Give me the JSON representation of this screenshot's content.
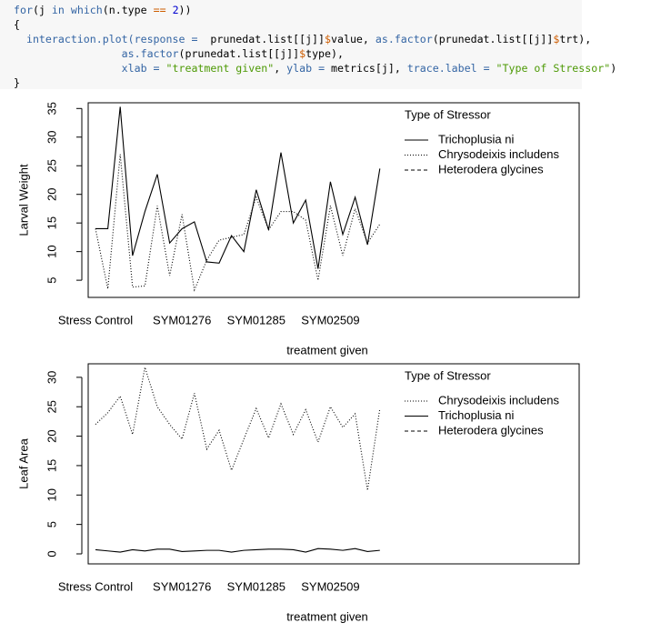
{
  "code": [
    [
      {
        "text": "for",
        "color": "#3465a4"
      },
      {
        "text": "(j ",
        "color": "#000000"
      },
      {
        "text": "in",
        "color": "#3465a4"
      },
      {
        "text": " ",
        "color": "#000000"
      },
      {
        "text": "which",
        "color": "#3465a4"
      },
      {
        "text": "(n.type ",
        "color": "#000000"
      },
      {
        "text": "==",
        "color": "#ce5c00"
      },
      {
        "text": " ",
        "color": "#000000"
      },
      {
        "text": "2",
        "color": "#0000cf"
      },
      {
        "text": "))",
        "color": "#000000"
      }
    ],
    [
      {
        "text": "{",
        "color": "#000000"
      }
    ],
    [
      {
        "text": "  interaction.plot(response =",
        "color": "#3465a4"
      },
      {
        "text": "  prunedat.list[[j]]",
        "color": "#000000"
      },
      {
        "text": "$",
        "color": "#ce5c00"
      },
      {
        "text": "value, ",
        "color": "#000000"
      },
      {
        "text": "as.factor",
        "color": "#3465a4"
      },
      {
        "text": "(prunedat.list[[j]]",
        "color": "#000000"
      },
      {
        "text": "$",
        "color": "#ce5c00"
      },
      {
        "text": "trt),",
        "color": "#000000"
      }
    ],
    [
      {
        "text": "                 as.factor",
        "color": "#3465a4"
      },
      {
        "text": "(prunedat.list[[j]]",
        "color": "#000000"
      },
      {
        "text": "$",
        "color": "#ce5c00"
      },
      {
        "text": "type),",
        "color": "#000000"
      }
    ],
    [
      {
        "text": "                 xlab = ",
        "color": "#3465a4"
      },
      {
        "text": "\"treatment given\"",
        "color": "#4e9a06"
      },
      {
        "text": ", ",
        "color": "#000000"
      },
      {
        "text": "ylab = ",
        "color": "#3465a4"
      },
      {
        "text": "metrics[j], ",
        "color": "#000000"
      },
      {
        "text": "trace.label = ",
        "color": "#3465a4"
      },
      {
        "text": "\"Type of Stressor\"",
        "color": "#4e9a06"
      },
      {
        "text": ")",
        "color": "#000000"
      }
    ],
    [
      {
        "text": "}",
        "color": "#000000"
      }
    ]
  ],
  "chart_data": [
    {
      "type": "line",
      "ylabel": "Larval Weight",
      "xlabel": "treatment given",
      "legend_title": "Type of Stressor",
      "legend": "top-right",
      "categories": [
        "Stress Control",
        null,
        null,
        null,
        null,
        null,
        null,
        "SYM01276",
        null,
        null,
        null,
        null,
        null,
        "SYM01285",
        null,
        null,
        null,
        null,
        null,
        "SYM02509",
        null,
        null,
        null,
        null
      ],
      "ylim": [
        2,
        36
      ],
      "yticks": [
        5,
        10,
        15,
        20,
        25,
        30,
        35
      ],
      "series": [
        {
          "name": "Trichoplusia ni",
          "color": "#000000",
          "linestyle": "solid",
          "values": [
            14,
            14,
            35.3,
            9.3,
            17,
            23.5,
            11.5,
            14,
            15.2,
            8.2,
            8,
            12.8,
            10,
            20.8,
            13.8,
            27.3,
            15,
            19,
            7,
            22.2,
            13,
            19.5,
            11.2,
            24.5
          ]
        },
        {
          "name": "Chrysodeixis includens",
          "color": "#000000",
          "linestyle": "dotted",
          "values": [
            14,
            3.5,
            27,
            3.8,
            4,
            18,
            5.8,
            16.5,
            3.3,
            8.5,
            12,
            12.5,
            13,
            19.5,
            13.8,
            17,
            17,
            15.5,
            5,
            18,
            9.3,
            17.5,
            11.5,
            14.8
          ]
        },
        {
          "name": "Heterodera glycines",
          "color": "#000000",
          "linestyle": "dashed",
          "values": [
            null,
            null,
            null,
            null,
            null,
            null,
            null,
            null,
            null,
            null,
            null,
            null,
            null,
            null,
            null,
            null,
            null,
            null,
            null,
            null,
            null,
            null,
            null,
            null
          ]
        }
      ]
    },
    {
      "type": "line",
      "ylabel": "Leaf Area",
      "xlabel": "treatment given",
      "legend_title": "Type of Stressor",
      "legend": "top-right",
      "categories": [
        "Stress Control",
        null,
        null,
        null,
        null,
        null,
        null,
        "SYM01276",
        null,
        null,
        null,
        null,
        null,
        "SYM01285",
        null,
        null,
        null,
        null,
        null,
        "SYM02509",
        null,
        null,
        null,
        null
      ],
      "ylim": [
        -1.7,
        32.3
      ],
      "yticks": [
        0,
        5,
        10,
        15,
        20,
        25,
        30
      ],
      "series": [
        {
          "name": "Chrysodeixis includens",
          "color": "#000000",
          "linestyle": "dotted",
          "values": [
            22,
            24,
            26.8,
            20.3,
            31.7,
            25,
            22,
            19.5,
            27.3,
            17.8,
            21,
            14.2,
            19.5,
            24.7,
            19.7,
            25.5,
            20.3,
            24.5,
            19,
            25,
            21.5,
            23.8,
            10.8,
            24.7
          ]
        },
        {
          "name": "Trichoplusia ni",
          "color": "#000000",
          "linestyle": "solid",
          "values": [
            0.7,
            0.5,
            0.3,
            0.7,
            0.5,
            0.8,
            0.8,
            0.4,
            0.5,
            0.6,
            0.6,
            0.3,
            0.6,
            0.7,
            0.8,
            0.8,
            0.7,
            0.3,
            0.9,
            0.8,
            0.6,
            0.9,
            0.4,
            0.6
          ]
        },
        {
          "name": "Heterodera glycines",
          "color": "#000000",
          "linestyle": "dashed",
          "values": [
            null,
            null,
            null,
            null,
            null,
            null,
            null,
            null,
            null,
            null,
            null,
            null,
            null,
            null,
            null,
            null,
            null,
            null,
            null,
            null,
            null,
            null,
            null,
            null
          ]
        }
      ]
    }
  ]
}
